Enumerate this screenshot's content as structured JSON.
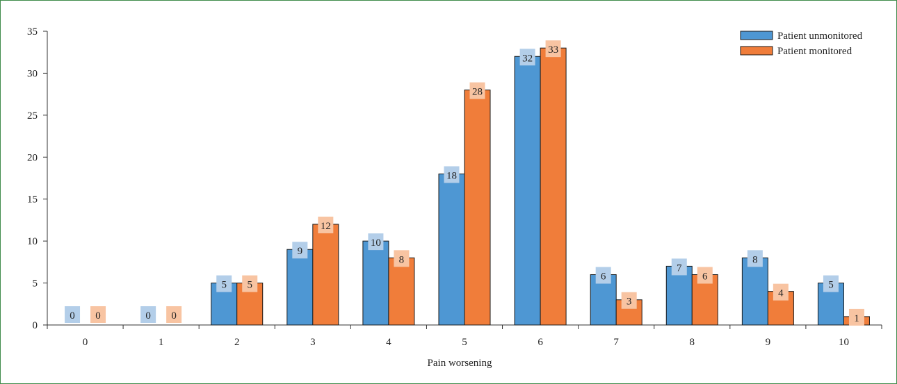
{
  "chart_data": {
    "type": "bar",
    "title": "",
    "xlabel": "Pain worsening",
    "ylabel": "",
    "categories": [
      "0",
      "1",
      "2",
      "3",
      "4",
      "5",
      "6",
      "7",
      "8",
      "9",
      "10"
    ],
    "ylim": [
      0,
      35
    ],
    "yticks": [
      0,
      5,
      10,
      15,
      20,
      25,
      30,
      35
    ],
    "grid": false,
    "legend_position": "top-right",
    "data_labels": true,
    "series": [
      {
        "name": "Patient unmonitored",
        "color": "#4e97d3",
        "label_bg": "#b3cee9",
        "values": [
          0,
          0,
          5,
          9,
          10,
          18,
          32,
          6,
          7,
          8,
          5
        ]
      },
      {
        "name": "Patient monitored",
        "color": "#f07d3a",
        "label_bg": "#f8c4a2",
        "values": [
          0,
          0,
          5,
          12,
          8,
          28,
          33,
          3,
          6,
          4,
          1
        ]
      }
    ]
  }
}
